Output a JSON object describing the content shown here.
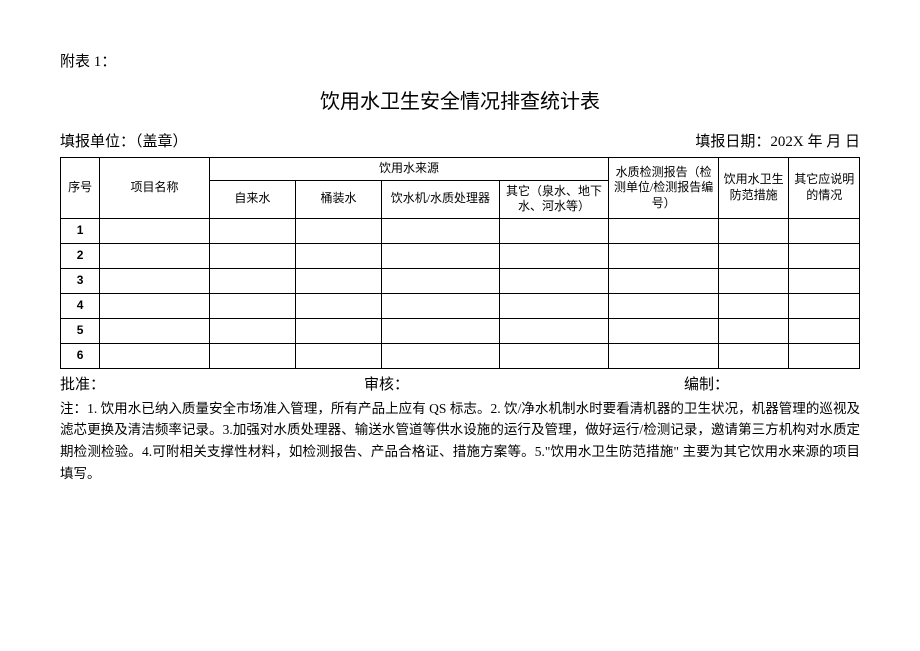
{
  "attachment_label": "附表 1：",
  "title": "饮用水卫生安全情况排查统计表",
  "meta": {
    "org_label": "填报单位：（盖章）",
    "date_label": "填报日期：202X 年 月 日"
  },
  "table": {
    "col_widths": [
      "5%",
      "14%",
      "11%",
      "11%",
      "15%",
      "14%",
      "14%",
      "9%",
      "9%"
    ],
    "header_top": {
      "seq": "序号",
      "project": "项目名称",
      "source_group": "饮用水来源",
      "report": "水质检测报告（检测单位/检测报告编号）",
      "measure": "饮用水卫生防范措施",
      "other": "其它应说明的情况"
    },
    "header_sub": {
      "tap": "自来水",
      "bottled": "桶装水",
      "machine": "饮水机/水质处理器",
      "misc": "其它（泉水、地下水、河水等）"
    },
    "row_numbers": [
      "1",
      "2",
      "3",
      "4",
      "5",
      "6"
    ]
  },
  "sign": {
    "approve": "批准：",
    "review": "审核：",
    "compile": "编制："
  },
  "notes": "注：1. 饮用水已纳入质量安全市场准入管理，所有产品上应有 QS 标志。2. 饮/净水机制水时要看清机器的卫生状况，机器管理的巡视及滤芯更换及清洁频率记录。3.加强对水质处理器、输送水管道等供水设施的运行及管理，做好运行/检测记录，邀请第三方机构对水质定期检测检验。4.可附相关支撑性材料，如检测报告、产品合格证、措施方案等。5.\"饮用水卫生防范措施\" 主要为其它饮用水来源的项目填写。"
}
